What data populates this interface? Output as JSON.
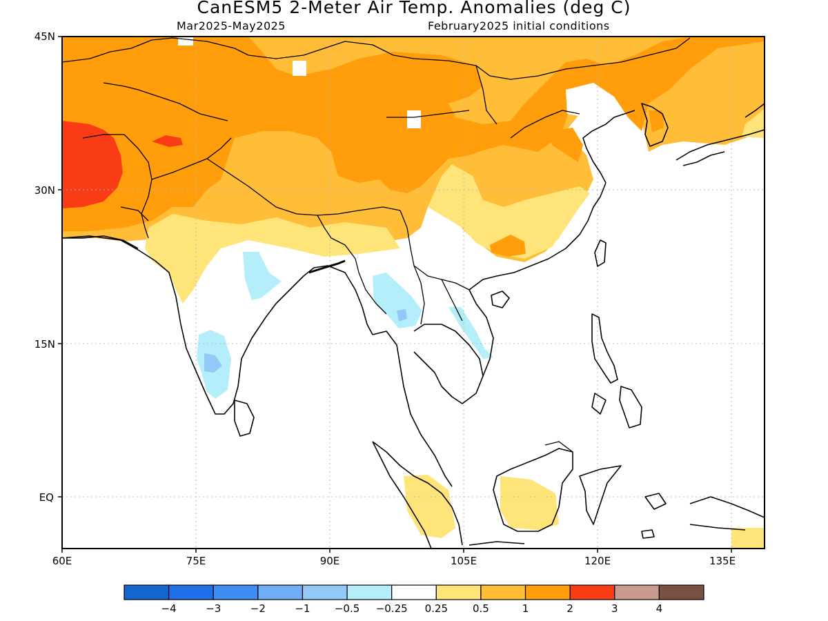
{
  "title": "CanESM5 2-Meter Air Temp. Anomalies (deg C)",
  "subtitle_left": "Mar2025-May2025",
  "subtitle_right": "February2025 initial conditions",
  "lat_labels": [
    "45N",
    "30N",
    "15N",
    "EQ"
  ],
  "lon_labels": [
    "60E",
    "75E",
    "90E",
    "105E",
    "120E",
    "135E"
  ],
  "colorbar": {
    "colors": [
      "#1565d0",
      "#1f6fe6",
      "#3d8df2",
      "#6fadf6",
      "#93c9f8",
      "#b3eefa",
      "#ffffff",
      "#ffe47a",
      "#ffbd38",
      "#ff9e0a",
      "#fa3c16",
      "#c99a8e",
      "#7a5040"
    ],
    "labels": [
      "-4",
      "-3",
      "-2",
      "-1",
      "-0.5",
      "-0.25",
      "0.25",
      "0.5",
      "1",
      "2",
      "3",
      "4"
    ]
  },
  "colors": {
    "lt_orange": "#ffbd38",
    "orange": "#ff9e0a",
    "red": "#fa3c16",
    "yellow": "#ffe47a",
    "lt_cyan": "#b3eefa",
    "lt_blue": "#93c9f8",
    "mid_blue": "#6fadf6"
  }
}
